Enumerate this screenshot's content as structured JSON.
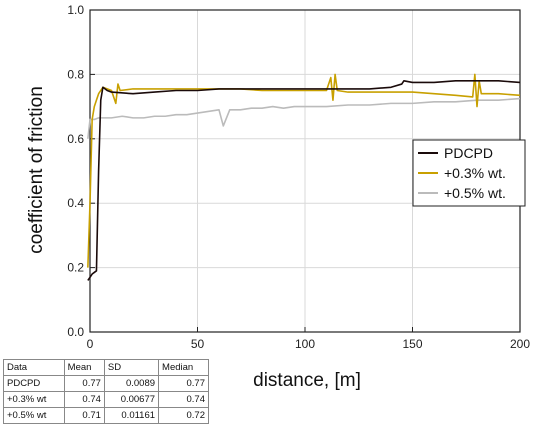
{
  "chart_data": {
    "type": "line",
    "title": "",
    "xlabel": "distance, [m]",
    "ylabel": "coefficient of friction",
    "xlim": [
      0,
      200
    ],
    "ylim": [
      0.0,
      1.0
    ],
    "x_ticks": [
      "0",
      "50",
      "100",
      "150",
      "200"
    ],
    "y_ticks": [
      "0.0",
      "0.2",
      "0.4",
      "0.6",
      "0.8",
      "1.0"
    ],
    "grid": true,
    "legend_position": "right",
    "series": [
      {
        "name": "PDCPD",
        "color": "#1a0a0a",
        "x": [
          -1,
          0,
          1,
          2,
          3,
          4,
          5,
          6,
          8,
          10,
          20,
          30,
          40,
          50,
          60,
          70,
          80,
          90,
          100,
          110,
          120,
          130,
          140,
          145,
          146,
          150,
          160,
          170,
          180,
          190,
          200
        ],
        "y": [
          0.16,
          0.17,
          0.18,
          0.185,
          0.19,
          0.5,
          0.72,
          0.76,
          0.75,
          0.745,
          0.74,
          0.745,
          0.75,
          0.75,
          0.755,
          0.755,
          0.755,
          0.755,
          0.755,
          0.755,
          0.755,
          0.755,
          0.76,
          0.77,
          0.78,
          0.775,
          0.775,
          0.78,
          0.78,
          0.78,
          0.775
        ]
      },
      {
        "name": "+0.3% wt.",
        "color": "#c8a000",
        "x": [
          -1,
          0,
          1,
          2,
          3,
          4,
          6,
          10,
          12,
          13,
          14,
          20,
          30,
          40,
          50,
          60,
          70,
          80,
          90,
          100,
          110,
          112,
          113,
          114,
          115,
          120,
          130,
          140,
          150,
          160,
          170,
          178,
          179,
          180,
          181,
          182,
          190,
          200
        ],
        "y": [
          0.2,
          0.4,
          0.66,
          0.7,
          0.72,
          0.74,
          0.76,
          0.75,
          0.71,
          0.77,
          0.75,
          0.755,
          0.755,
          0.755,
          0.755,
          0.755,
          0.755,
          0.75,
          0.75,
          0.75,
          0.75,
          0.79,
          0.72,
          0.8,
          0.75,
          0.745,
          0.745,
          0.745,
          0.745,
          0.74,
          0.735,
          0.73,
          0.8,
          0.7,
          0.78,
          0.74,
          0.74,
          0.735
        ]
      },
      {
        "name": "+0.5% wt.",
        "color": "#bbbbbb",
        "x": [
          -1,
          0,
          2,
          4,
          6,
          10,
          15,
          20,
          25,
          30,
          35,
          40,
          45,
          50,
          55,
          60,
          62,
          65,
          70,
          75,
          80,
          85,
          90,
          95,
          100,
          110,
          120,
          130,
          140,
          150,
          160,
          170,
          180,
          190,
          200
        ],
        "y": [
          0.6,
          0.66,
          0.66,
          0.665,
          0.665,
          0.665,
          0.67,
          0.665,
          0.665,
          0.67,
          0.67,
          0.675,
          0.675,
          0.68,
          0.685,
          0.69,
          0.64,
          0.69,
          0.69,
          0.695,
          0.695,
          0.7,
          0.695,
          0.7,
          0.7,
          0.7,
          0.705,
          0.705,
          0.71,
          0.71,
          0.715,
          0.715,
          0.72,
          0.72,
          0.725
        ]
      }
    ]
  },
  "stats_table": {
    "headers": [
      "Data",
      "Mean",
      "SD",
      "Median"
    ],
    "rows": [
      [
        "PDCPD",
        "0.77",
        "0.0089",
        "0.77"
      ],
      [
        "+0.3% wt",
        "0.74",
        "0.00677",
        "0.74"
      ],
      [
        "+0.5% wt",
        "0.71",
        "0.01161",
        "0.72"
      ]
    ]
  }
}
